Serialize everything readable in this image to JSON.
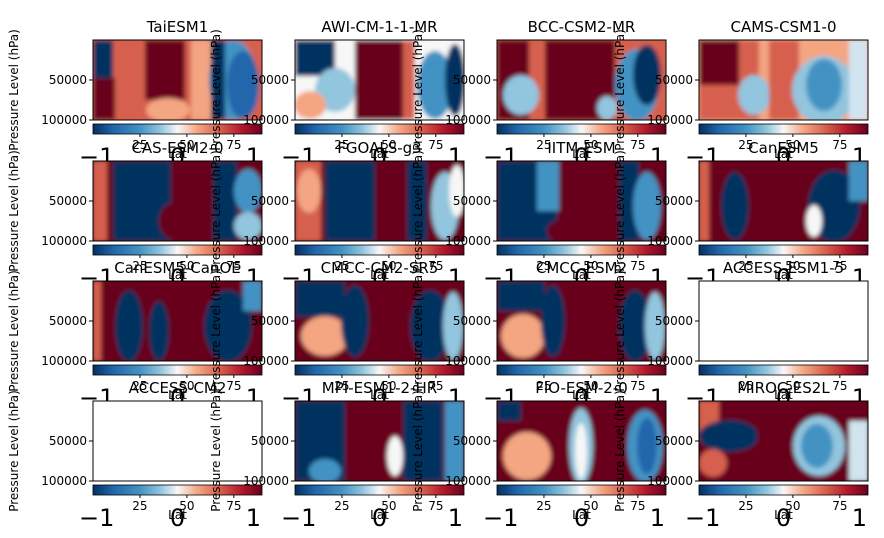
{
  "chart_data": {
    "type": "heatmap",
    "layout": {
      "rows": 4,
      "cols": 4
    },
    "ylabel": "Pressure Level (hPa)",
    "xlabel": "Lat",
    "xlim": [
      0,
      90
    ],
    "ylim": [
      100000,
      0
    ],
    "ytick_labels": [
      "50000",
      "100000"
    ],
    "colorbar_tick_labels": [
      "25",
      "50",
      "75"
    ],
    "colorbar_under_labels": [
      "−1",
      "0",
      "1"
    ],
    "colormap": "RdBu_r",
    "colors": {
      "dark_red": "#67001f",
      "red": "#d6604d",
      "light": "#f7f7f7",
      "blue": "#4393c3",
      "dark_blue": "#053061"
    },
    "panels": [
      {
        "title": "TaiESM1",
        "empty": false
      },
      {
        "title": "AWI-CM-1-1-MR",
        "empty": false
      },
      {
        "title": "BCC-CSM2-MR",
        "empty": false
      },
      {
        "title": "CAMS-CSM1-0",
        "empty": false
      },
      {
        "title": "CAS-ESM2-0",
        "empty": false
      },
      {
        "title": "FGOALS-g3",
        "empty": false
      },
      {
        "title": "IITM-ESM",
        "empty": false
      },
      {
        "title": "CanESM5",
        "empty": false
      },
      {
        "title": "CanESM5-CanOE",
        "empty": false
      },
      {
        "title": "CMCC-CM2-SR5",
        "empty": false
      },
      {
        "title": "CMCC-ESM2",
        "empty": false
      },
      {
        "title": "ACCESS-ESM1-5",
        "empty": true
      },
      {
        "title": "ACCESS-CM2",
        "empty": true
      },
      {
        "title": "MPI-ESM1-2-HR",
        "empty": false
      },
      {
        "title": "FIO-ESM-2-0",
        "empty": false
      },
      {
        "title": "MIROC-ES2L",
        "empty": false
      }
    ]
  }
}
